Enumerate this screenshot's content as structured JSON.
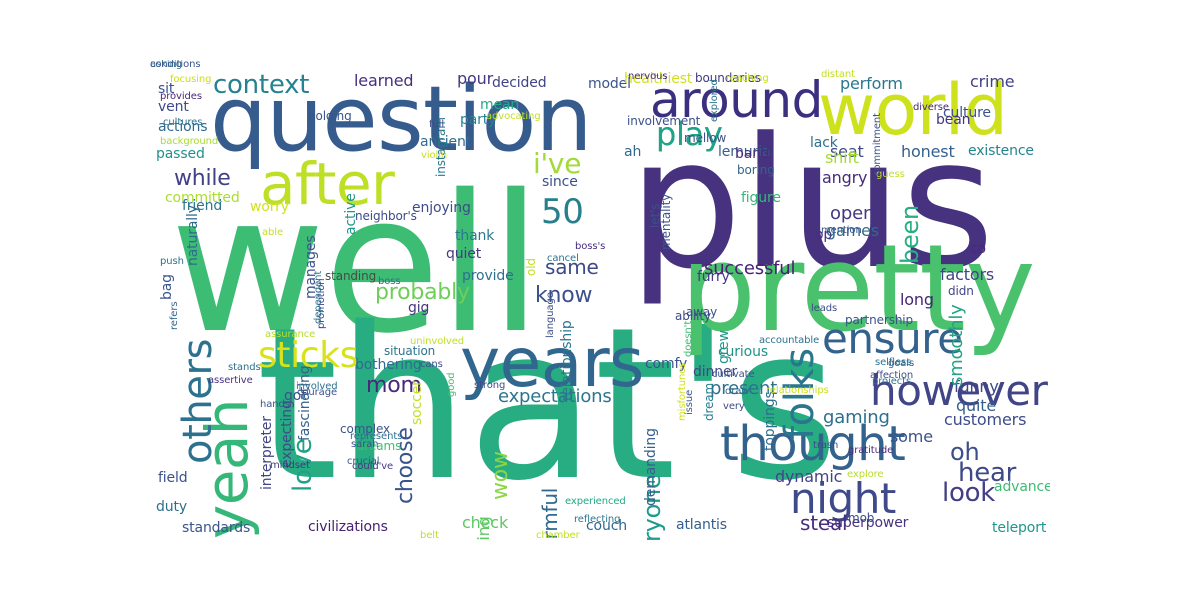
{
  "wordcloud": {
    "words": [
      {
        "text": "well",
        "color": "#3dbc74"
      },
      {
        "text": "plus",
        "color": "#46327e"
      },
      {
        "text": "that's",
        "color": "#27ad81"
      },
      {
        "text": "question",
        "color": "#365c8d"
      },
      {
        "text": "pretty",
        "color": "#4ac16d"
      },
      {
        "text": "world",
        "color": "#cde11d"
      },
      {
        "text": "years",
        "color": "#31668e"
      },
      {
        "text": "yeah",
        "color": "#35b779"
      },
      {
        "text": "after",
        "color": "#bddf26"
      },
      {
        "text": "around",
        "color": "#3b2f80"
      },
      {
        "text": "however",
        "color": "#414487"
      },
      {
        "text": "thought",
        "color": "#33638d"
      },
      {
        "text": "night",
        "color": "#3e4a89"
      },
      {
        "text": "others",
        "color": "#2c728e"
      },
      {
        "text": "ensure",
        "color": "#33628d"
      },
      {
        "text": "folks",
        "color": "#2a768e"
      },
      {
        "text": "sticks",
        "color": "#d8e219"
      },
      {
        "text": "play",
        "color": "#20a386"
      },
      {
        "text": "50",
        "color": "#277f8e"
      },
      {
        "text": "context",
        "color": "#26828e"
      },
      {
        "text": "i've",
        "color": "#a2da37"
      },
      {
        "text": "while",
        "color": "#424086"
      },
      {
        "text": "probably",
        "color": "#6ece58"
      },
      {
        "text": "know",
        "color": "#3b518b"
      },
      {
        "text": "same",
        "color": "#3e4989"
      },
      {
        "text": "mom",
        "color": "#482878"
      },
      {
        "text": "love",
        "color": "#1fa187"
      },
      {
        "text": "choose",
        "color": "#3a538b"
      },
      {
        "text": "look",
        "color": "#433e85"
      },
      {
        "text": "hear",
        "color": "#3f4889"
      },
      {
        "text": "oh",
        "color": "#3d4e8a"
      },
      {
        "text": "wow",
        "color": "#8bd646"
      },
      {
        "text": "harmful",
        "color": "#306a8e"
      },
      {
        "text": "everyone",
        "color": "#1e9b8a"
      },
      {
        "text": "been",
        "color": "#28ae80"
      },
      {
        "text": "steal",
        "color": "#472d7b"
      },
      {
        "text": "successful",
        "color": "#482173"
      },
      {
        "text": "expectations",
        "color": "#2b758e"
      },
      {
        "text": "present",
        "color": "#2d708e"
      },
      {
        "text": "gaming",
        "color": "#2e6f8e"
      },
      {
        "text": "funny",
        "color": "#404688"
      },
      {
        "text": "quite",
        "color": "#355f8d"
      },
      {
        "text": "some",
        "color": "#3b528b"
      },
      {
        "text": "long",
        "color": "#482576"
      },
      {
        "text": "factors",
        "color": "#404387"
      },
      {
        "text": "customers",
        "color": "#3e4c8a"
      },
      {
        "text": "dynamic",
        "color": "#414487"
      },
      {
        "text": "honest",
        "color": "#34608d"
      },
      {
        "text": "seat",
        "color": "#3e4989"
      },
      {
        "text": "perform",
        "color": "#2a778e"
      },
      {
        "text": "angry",
        "color": "#472a7a"
      },
      {
        "text": "shift",
        "color": "#a5db36"
      },
      {
        "text": "open",
        "color": "#453781"
      },
      {
        "text": "games",
        "color": "#2f6c8e"
      },
      {
        "text": "smoothly",
        "color": "#21a585"
      },
      {
        "text": "suddenly",
        "color": "#65cb5e"
      },
      {
        "text": "crime",
        "color": "#424186"
      },
      {
        "text": "existence",
        "color": "#25848e"
      },
      {
        "text": "culture",
        "color": "#3b528b"
      },
      {
        "text": "bean",
        "color": "#453581"
      },
      {
        "text": "lack",
        "color": "#2c738e"
      },
      {
        "text": "play",
        "color": "#20a386"
      },
      {
        "text": "running",
        "color": "#5ec962"
      },
      {
        "text": "check",
        "color": "#5cc863"
      },
      {
        "text": "couch",
        "color": "#31688e"
      },
      {
        "text": "atlantis",
        "color": "#34608d"
      },
      {
        "text": "superpower",
        "color": "#463480"
      },
      {
        "text": "teleport",
        "color": "#1f958b"
      },
      {
        "text": "mob",
        "color": "#3d4d8a"
      },
      {
        "text": "advanced",
        "color": "#3fbc73"
      },
      {
        "text": "standards",
        "color": "#3a548c"
      },
      {
        "text": "duty",
        "color": "#2d708e"
      },
      {
        "text": "field",
        "color": "#3b528b"
      },
      {
        "text": "civilizations",
        "color": "#482071"
      },
      {
        "text": "sit",
        "color": "#3c508b"
      },
      {
        "text": "vent",
        "color": "#3e4989"
      },
      {
        "text": "actions",
        "color": "#2f6b8e"
      },
      {
        "text": "passed",
        "color": "#21918c"
      },
      {
        "text": "friend",
        "color": "#2a768e"
      },
      {
        "text": "learned",
        "color": "#462f7e"
      },
      {
        "text": "pour",
        "color": "#453882"
      },
      {
        "text": "decided",
        "color": "#404387"
      },
      {
        "text": "model",
        "color": "#3a548c"
      },
      {
        "text": "party",
        "color": "#26828e"
      },
      {
        "text": "ancient",
        "color": "#2f6c8e"
      },
      {
        "text": "since",
        "color": "#3b518b"
      },
      {
        "text": "enjoying",
        "color": "#3e4c8a"
      },
      {
        "text": "thank",
        "color": "#2a788e"
      },
      {
        "text": "quiet",
        "color": "#443983"
      },
      {
        "text": "provide",
        "color": "#2d708e"
      },
      {
        "text": "gig",
        "color": "#453781"
      },
      {
        "text": "soccer",
        "color": "#c2df23"
      },
      {
        "text": "relationship",
        "color": "#2a778e"
      },
      {
        "text": "mean",
        "color": "#22a884"
      },
      {
        "text": "healthiest",
        "color": "#d0e11c"
      },
      {
        "text": "boundaries",
        "color": "#453882"
      },
      {
        "text": "mellow",
        "color": "#3c4f8a"
      },
      {
        "text": "lemuria",
        "color": "#365d8d"
      },
      {
        "text": "band",
        "color": "#472e7c"
      },
      {
        "text": "boring",
        "color": "#33638d"
      },
      {
        "text": "figure",
        "color": "#35b779"
      },
      {
        "text": "comfy",
        "color": "#3b528b"
      },
      {
        "text": "away",
        "color": "#3d4e8a"
      },
      {
        "text": "grew",
        "color": "#1f988b"
      },
      {
        "text": "curious",
        "color": "#20928c"
      },
      {
        "text": "dinner",
        "color": "#3f4788"
      },
      {
        "text": "toppings",
        "color": "#2e6e8e"
      },
      {
        "text": "dream",
        "color": "#27808e"
      },
      {
        "text": "op",
        "color": "#46307e"
      },
      {
        "text": "co",
        "color": "#472a7a"
      },
      {
        "text": "naturally",
        "color": "#2f6b8e"
      },
      {
        "text": "active",
        "color": "#1f9a8a"
      },
      {
        "text": "manages",
        "color": "#3b528b"
      },
      {
        "text": "expecting",
        "color": "#3e4a89"
      },
      {
        "text": "got",
        "color": "#3b528b"
      },
      {
        "text": "fascinating",
        "color": "#34618d"
      },
      {
        "text": "interpreter",
        "color": "#414487"
      },
      {
        "text": "worry",
        "color": "#d2e21b"
      },
      {
        "text": "holding",
        "color": "#3a538b"
      },
      {
        "text": "instagram",
        "color": "#2a778e"
      },
      {
        "text": "ah",
        "color": "#31688e"
      },
      {
        "text": "bothering",
        "color": "#2f6b8e"
      },
      {
        "text": "situation",
        "color": "#2a768e"
      },
      {
        "text": "complex",
        "color": "#3b528b"
      },
      {
        "text": "dreams",
        "color": "#3fbc73"
      },
      {
        "text": "demanding",
        "color": "#34618d"
      },
      {
        "text": "furry",
        "color": "#443983"
      },
      {
        "text": "ability",
        "color": "#3e4989"
      },
      {
        "text": "neighbor's",
        "color": "#3e4989"
      },
      {
        "text": "standing",
        "color": "#4a4a4a"
      },
      {
        "text": "focusing",
        "color": "#c8e020"
      },
      {
        "text": "provides",
        "color": "#482878"
      },
      {
        "text": "cultures",
        "color": "#2c728e"
      },
      {
        "text": "background",
        "color": "#a8db34"
      },
      {
        "text": "committed",
        "color": "#addc30"
      },
      {
        "text": "able",
        "color": "#c5e021"
      },
      {
        "text": "bag",
        "color": "#39568c"
      },
      {
        "text": "refers",
        "color": "#31688e"
      },
      {
        "text": "assurance",
        "color": "#b5de2b"
      },
      {
        "text": "stands",
        "color": "#2e6f8e"
      },
      {
        "text": "assertive",
        "color": "#46327e"
      },
      {
        "text": "mindset",
        "color": "#443a83"
      },
      {
        "text": "hands",
        "color": "#3b528b"
      },
      {
        "text": "involved",
        "color": "#2c718e"
      },
      {
        "text": "courage",
        "color": "#3b518b"
      },
      {
        "text": "represents",
        "color": "#2d708e"
      },
      {
        "text": "sarah",
        "color": "#3b528b"
      },
      {
        "text": "crucial",
        "color": "#3a548c"
      },
      {
        "text": "could've",
        "color": "#443a83"
      },
      {
        "text": "belt",
        "color": "#c0df25"
      },
      {
        "text": "chamber",
        "color": "#bddf26"
      },
      {
        "text": "reflecting",
        "color": "#2a788e"
      },
      {
        "text": "experienced",
        "color": "#22a785"
      },
      {
        "text": "push",
        "color": "#2c728e"
      },
      {
        "text": "dependent",
        "color": "#2a788e"
      },
      {
        "text": "promotion",
        "color": "#404688"
      },
      {
        "text": "boss",
        "color": "#2e6e8e"
      },
      {
        "text": "uninvolved",
        "color": "#c0df25"
      },
      {
        "text": "cans",
        "color": "#3b528b"
      },
      {
        "text": "good",
        "color": "#4ac16d"
      },
      {
        "text": "strong",
        "color": "#3e4a89"
      },
      {
        "text": "language",
        "color": "#3d4e8a"
      },
      {
        "text": "cancel",
        "color": "#2c738e"
      },
      {
        "text": "old",
        "color": "#c2df23"
      },
      {
        "text": "mentality",
        "color": "#3b528b"
      },
      {
        "text": "boss's",
        "color": "#472d7b"
      },
      {
        "text": "let's",
        "color": "#3b518b"
      },
      {
        "text": "issue",
        "color": "#3b528b"
      },
      {
        "text": "draw",
        "color": "#31688e"
      },
      {
        "text": "very",
        "color": "#3e4a89"
      },
      {
        "text": "misfortunes",
        "color": "#d0e11c"
      },
      {
        "text": "cultivate",
        "color": "#3b528b"
      },
      {
        "text": "accountable",
        "color": "#2c728e"
      },
      {
        "text": "leads",
        "color": "#3e4c8a"
      },
      {
        "text": "partnership",
        "color": "#3b528b"
      },
      {
        "text": "doesn't",
        "color": "#3fbc73"
      },
      {
        "text": "relationships",
        "color": "#c8e020"
      },
      {
        "text": "projects",
        "color": "#2d708e"
      },
      {
        "text": "affection",
        "color": "#3d4e8a"
      },
      {
        "text": "gratitude",
        "color": "#472a7a"
      },
      {
        "text": "explore",
        "color": "#b8de29"
      },
      {
        "text": "trash",
        "color": "#3e4a89"
      },
      {
        "text": "goals",
        "color": "#3b528b"
      },
      {
        "text": "selfless",
        "color": "#2c728e"
      },
      {
        "text": "mention",
        "color": "#3b528b"
      },
      {
        "text": "guess",
        "color": "#c0df25"
      },
      {
        "text": "commitment",
        "color": "#3b528b"
      },
      {
        "text": "diverse",
        "color": "#482878"
      },
      {
        "text": "didn",
        "color": "#404688"
      },
      {
        "text": "distant",
        "color": "#c5e021"
      },
      {
        "text": "reaching",
        "color": "#c8e020"
      },
      {
        "text": "explored",
        "color": "#2c728e"
      },
      {
        "text": "nervous",
        "color": "#472d7b"
      },
      {
        "text": "involvement",
        "color": "#3b528b"
      },
      {
        "text": "violin",
        "color": "#c8e020"
      },
      {
        "text": "full",
        "color": "#3e4a89"
      },
      {
        "text": "advocating",
        "color": "#c0df25"
      },
      {
        "text": "asking",
        "color": "#2c728e"
      },
      {
        "text": "conditions",
        "color": "#3b528b"
      }
    ]
  }
}
